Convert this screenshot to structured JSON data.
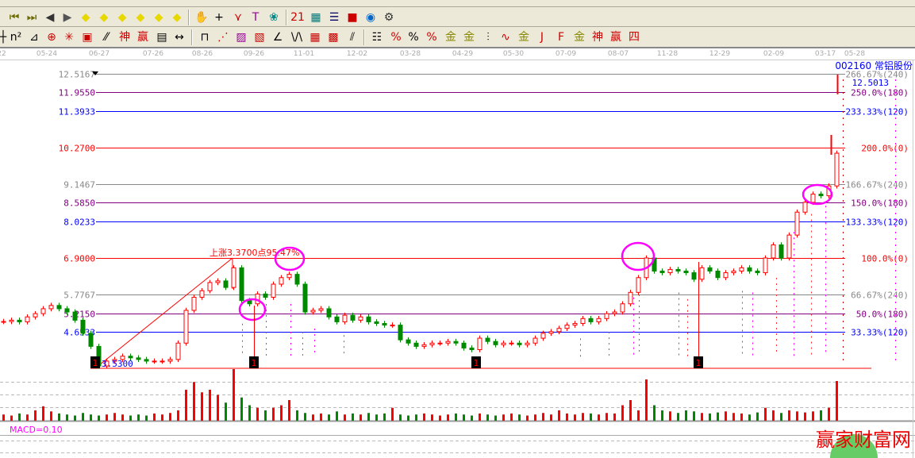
{
  "toolbar": {
    "row2": [
      {
        "name": "first-icon",
        "g": "⏮",
        "c": "#6b6b00"
      },
      {
        "name": "last-icon",
        "g": "⏭",
        "c": "#6b6b00"
      },
      {
        "name": "prev-icon",
        "g": "◀",
        "c": "#333"
      },
      {
        "name": "next-icon",
        "g": "▶",
        "c": "#555"
      },
      {
        "name": "move-left-icon",
        "g": "◆",
        "c": "#e6d800"
      },
      {
        "name": "move-right-icon",
        "g": "◆",
        "c": "#e6d800"
      },
      {
        "name": "expand-icon",
        "g": "◆",
        "c": "#e6d800"
      },
      {
        "name": "shrink-icon",
        "g": "◆",
        "c": "#e6d800"
      },
      {
        "name": "zoom-in-icon",
        "g": "◆",
        "c": "#e6d800"
      },
      {
        "name": "zoom-out-icon",
        "g": "◆",
        "c": "#e6d800"
      },
      {
        "name": "hand-icon",
        "g": "✋",
        "c": "#000"
      },
      {
        "name": "crosshair-icon",
        "g": "+",
        "c": "#000"
      },
      {
        "name": "line-icon",
        "g": "⋎",
        "c": "#c00"
      },
      {
        "name": "text-icon",
        "g": "T",
        "c": "#909"
      },
      {
        "name": "brain-icon",
        "g": "❀",
        "c": "#088"
      },
      {
        "name": "calendar-icon",
        "g": "21",
        "c": "#c00"
      },
      {
        "name": "calculator-icon",
        "g": "▦",
        "c": "#077"
      },
      {
        "name": "notes-icon",
        "g": "☰",
        "c": "#006"
      },
      {
        "name": "save-icon",
        "g": "■",
        "c": "#c00"
      },
      {
        "name": "network-icon",
        "g": "◉",
        "c": "#06c"
      },
      {
        "name": "connect-icon",
        "g": "⚙",
        "c": "#333"
      }
    ],
    "row3": [
      {
        "name": "ruler-icon",
        "g": "┼",
        "c": "#000"
      },
      {
        "name": "square-icon",
        "g": "n²",
        "c": "#000"
      },
      {
        "name": "triangle-icon",
        "g": "⊿",
        "c": "#000"
      },
      {
        "name": "target-icon",
        "g": "⊕",
        "c": "#c00"
      },
      {
        "name": "web-icon",
        "g": "✳",
        "c": "#c00"
      },
      {
        "name": "box-web-icon",
        "g": "▣",
        "c": "#c00"
      },
      {
        "name": "ratio-icon",
        "g": "⁄⁄",
        "c": "#000"
      },
      {
        "name": "shen-icon",
        "g": "神",
        "c": "#c00"
      },
      {
        "name": "ying-icon",
        "g": "赢",
        "c": "#c00"
      },
      {
        "name": "scale-icon",
        "g": "▤",
        "c": "#000"
      },
      {
        "name": "width-icon",
        "g": "↔",
        "c": "#000"
      },
      {
        "name": "period-icon",
        "g": "⊓",
        "c": "#000"
      },
      {
        "name": "fan-icon",
        "g": "⋰",
        "c": "#c00"
      },
      {
        "name": "gann-box-icon",
        "g": "▨",
        "c": "#909"
      },
      {
        "name": "gann-fan-icon",
        "g": "▧",
        "c": "#c00"
      },
      {
        "name": "angle-icon",
        "g": "∠",
        "c": "#000"
      },
      {
        "name": "wave-icon",
        "g": "\\/\\",
        "c": "#000"
      },
      {
        "name": "grid-icon",
        "g": "▦",
        "c": "#c00"
      },
      {
        "name": "grid2-icon",
        "g": "▩",
        "c": "#c00"
      },
      {
        "name": "parallel-icon",
        "g": "⫽",
        "c": "#000"
      },
      {
        "name": "fib-icon",
        "g": "☷",
        "c": "#000"
      },
      {
        "name": "percent-line-icon",
        "g": "%",
        "c": "#c00"
      },
      {
        "name": "percent-icon",
        "g": "%",
        "c": "#000"
      },
      {
        "name": "percent-levels-icon",
        "g": "%",
        "c": "#c00"
      },
      {
        "name": "gold-circle-icon",
        "g": "金",
        "c": "#880"
      },
      {
        "name": "gold-levels-icon",
        "g": "金",
        "c": "#880"
      },
      {
        "name": "cycle-icon",
        "g": "⫶",
        "c": "#000"
      },
      {
        "name": "sine-icon",
        "g": "∿",
        "c": "#c00"
      },
      {
        "name": "gold-icon",
        "g": "金",
        "c": "#880"
      },
      {
        "name": "j-fan-icon",
        "g": "J",
        "c": "#c00"
      },
      {
        "name": "f-fan-icon",
        "g": "F",
        "c": "#c00"
      },
      {
        "name": "gold-fan-icon",
        "g": "金",
        "c": "#880"
      },
      {
        "name": "shen-fan-icon",
        "g": "神",
        "c": "#c00"
      },
      {
        "name": "ying-fan-icon",
        "g": "赢",
        "c": "#c00"
      },
      {
        "name": "four-fan-icon",
        "g": "四",
        "c": "#c00"
      }
    ]
  },
  "date_axis": [
    "22",
    "05-24",
    "06-27",
    "07-26",
    "08-26",
    "09-26",
    "11-01",
    "12-02",
    "03-28",
    "04-29",
    "05-30",
    "07-09",
    "08-07",
    "11-28",
    "12-29",
    "02-09",
    "03-17",
    "05-28"
  ],
  "stock": {
    "code_name": "002160 常铝股份",
    "current": "12.5013"
  },
  "chart_data": {
    "type": "candlestick",
    "levels": [
      {
        "price": "12.5167",
        "pct": "266.67%(240)",
        "color": "#888888"
      },
      {
        "price": "11.9550",
        "pct": "250.0%(180)",
        "color": "#800080"
      },
      {
        "price": "11.3933",
        "pct": "233.33%(120)",
        "color": "#0000ff"
      },
      {
        "price": "10.2700",
        "pct": "200.0%(0)",
        "color": "#ff0000"
      },
      {
        "price": "9.1467",
        "pct": "166.67%(240)",
        "color": "#888888"
      },
      {
        "price": "8.5850",
        "pct": "150.0%(180)",
        "color": "#800080"
      },
      {
        "price": "8.0233",
        "pct": "133.33%(120)",
        "color": "#0000ff"
      },
      {
        "price": "6.9000",
        "pct": "100.0%(0)",
        "color": "#ff0000"
      },
      {
        "price": "5.7767",
        "pct": "66.67%(240)",
        "color": "#888888"
      },
      {
        "price": "5.2150",
        "pct": "50.0%(180)",
        "color": "#800080"
      },
      {
        "price": "4.6533",
        "pct": "33.33%(120)",
        "color": "#0000ff"
      }
    ],
    "low_price": 3.53,
    "low_label": "3.5300",
    "rise_label": "上涨3.3700点95.47%",
    "close": [
      4.96,
      5.0,
      4.95,
      5.1,
      5.2,
      5.35,
      5.45,
      5.35,
      5.25,
      5.0,
      4.6,
      4.2,
      3.6,
      3.75,
      3.8,
      3.9,
      3.85,
      3.8,
      3.75,
      3.75,
      3.75,
      3.8,
      4.3,
      5.3,
      5.7,
      5.9,
      6.15,
      6.2,
      6.0,
      6.6,
      5.6,
      5.5,
      5.8,
      5.7,
      6.1,
      6.3,
      6.4,
      6.1,
      5.25,
      5.3,
      5.35,
      5.1,
      4.95,
      5.15,
      5.0,
      5.1,
      4.95,
      4.9,
      4.85,
      4.85,
      4.4,
      4.3,
      4.2,
      4.25,
      4.3,
      4.3,
      4.35,
      4.3,
      4.15,
      4.1,
      4.45,
      4.35,
      4.25,
      4.3,
      4.3,
      4.25,
      4.3,
      4.45,
      4.6,
      4.65,
      4.75,
      4.85,
      4.9,
      5.05,
      4.95,
      5.05,
      5.2,
      5.25,
      5.5,
      5.85,
      6.3,
      6.9,
      6.5,
      6.45,
      6.55,
      6.5,
      6.45,
      6.25,
      6.6,
      6.5,
      6.3,
      6.45,
      6.5,
      6.6,
      6.5,
      6.45,
      6.9,
      7.3,
      6.9,
      7.6,
      8.3,
      8.6,
      8.85,
      8.8,
      9.1,
      10.1
    ],
    "volume": [
      12,
      10,
      14,
      12,
      20,
      28,
      18,
      14,
      12,
      10,
      15,
      12,
      10,
      12,
      15,
      12,
      10,
      12,
      10,
      14,
      12,
      15,
      20,
      60,
      75,
      55,
      60,
      50,
      35,
      100,
      45,
      30,
      25,
      20,
      25,
      30,
      40,
      20,
      15,
      12,
      14,
      12,
      18,
      12,
      14,
      12,
      15,
      12,
      14,
      25,
      12,
      10,
      12,
      14,
      12,
      10,
      12,
      14,
      12,
      10,
      14,
      12,
      10,
      12,
      14,
      12,
      10,
      12,
      15,
      12,
      20,
      14,
      12,
      15,
      14,
      12,
      15,
      14,
      30,
      40,
      20,
      80,
      30,
      20,
      18,
      15,
      20,
      18,
      15,
      14,
      16,
      18,
      15,
      14,
      12,
      16,
      25,
      20,
      15,
      20,
      18,
      16,
      18,
      20,
      25,
      70
    ],
    "markers": [
      "1",
      "1",
      "1",
      "1"
    ],
    "indicator_label": "MACD=0.10"
  },
  "watermark": "赢家财富网"
}
